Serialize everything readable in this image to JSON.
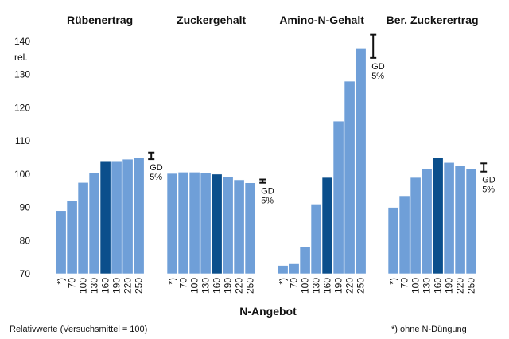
{
  "colors": {
    "bar": "#6f9fd8",
    "highlight": "#0b4f8c",
    "bar_outline": "#ffffff",
    "axis": "#111111"
  },
  "chart_data": [
    {
      "type": "bar",
      "title": "Rübenertrag",
      "categories": [
        "*)",
        "70",
        "100",
        "130",
        "160",
        "190",
        "220",
        "250"
      ],
      "values": [
        89,
        92,
        97.5,
        100.5,
        104,
        104,
        104.5,
        105
      ],
      "highlight_category": "160",
      "gd_label": [
        "GD",
        "5%"
      ],
      "gd_value": 2
    },
    {
      "type": "bar",
      "title": "Zuckergehalt",
      "categories": [
        "*)",
        "70",
        "100",
        "130",
        "160",
        "190",
        "220",
        "250"
      ],
      "values": [
        100.2,
        100.6,
        100.6,
        100.4,
        100.0,
        99.2,
        98.3,
        97.4
      ],
      "highlight_category": "160",
      "gd_label": [
        "GD",
        "5%"
      ],
      "gd_value": 1
    },
    {
      "type": "bar",
      "title": "Amino-N-Gehalt",
      "categories": [
        "*)",
        "70",
        "100",
        "130",
        "160",
        "190",
        "220",
        "250"
      ],
      "values": [
        72.5,
        73,
        78,
        91,
        99,
        116,
        128,
        138
      ],
      "highlight_category": "160",
      "gd_label": [
        "GD",
        "5%"
      ],
      "gd_value": 7
    },
    {
      "type": "bar",
      "title": "Ber. Zuckerertrag",
      "categories": [
        "*)",
        "70",
        "100",
        "130",
        "160",
        "190",
        "220",
        "250"
      ],
      "values": [
        90,
        93.5,
        99,
        101.5,
        105,
        103.5,
        102.5,
        101.5
      ],
      "highlight_category": "160",
      "gd_label": [
        "GD",
        "5%"
      ],
      "gd_value": 2.5
    }
  ],
  "axis": {
    "y_ticks": [
      70,
      80,
      90,
      100,
      110,
      120,
      130,
      140
    ],
    "ylim": [
      70,
      140
    ],
    "y_unit": "rel.",
    "xlabel": "N-Angebot"
  },
  "footnotes": {
    "left": "Relativwerte (Versuchsmittel = 100)",
    "right": "*) ohne N-Düngung"
  }
}
